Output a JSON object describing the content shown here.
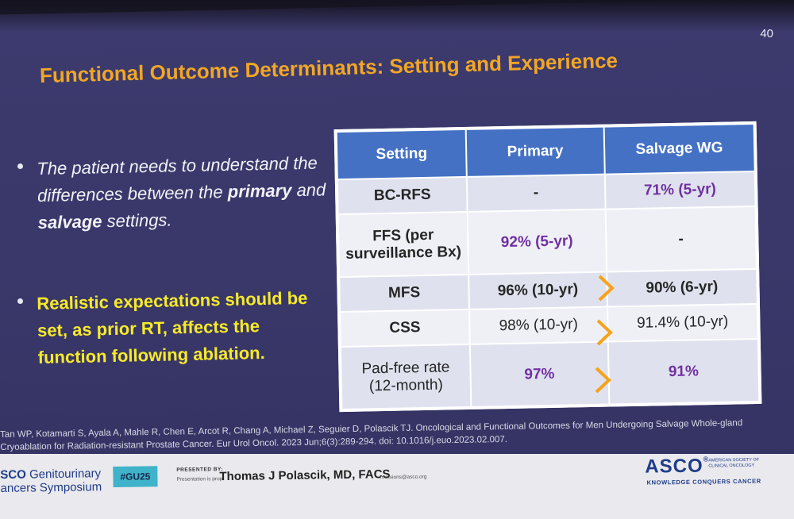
{
  "slide": {
    "number": "40",
    "title": "Functional Outcome Determinants: Setting and Experience"
  },
  "bullets": {
    "b1_pre": "The patient needs to understand the differences between the ",
    "b1_bold1": "primary",
    "b1_mid": " and ",
    "b1_bold2": "salvage",
    "b1_post": " settings.",
    "b2": "Realistic expectations should be set, as prior RT, affects the function following ablation."
  },
  "table": {
    "headers": [
      "Setting",
      "Primary",
      "Salvage WG"
    ],
    "rows": [
      {
        "setting": "BC-RFS",
        "primary": "-",
        "salvage": "71% (5-yr)"
      },
      {
        "setting": "FFS (per surveillance Bx)",
        "primary": "92% (5-yr)",
        "salvage": "-"
      },
      {
        "setting": "MFS",
        "primary": "96% (10-yr)",
        "salvage": "90% (6-yr)"
      },
      {
        "setting": "CSS",
        "primary": "98% (10-yr)",
        "salvage": "91.4% (10-yr)"
      },
      {
        "setting": "Pad-free rate (12-month)",
        "primary": "97%",
        "salvage": "91%"
      }
    ],
    "arrow_color": "#f5a21c"
  },
  "reference": {
    "line1": "Tan WP, Kotamarti S, Ayala A, Mahle R, Chen E, Arcot R, Chang A, Michael Z, Seguier D, Polascik TJ. Oncological and Functional Outcomes for Men Undergoing Salvage Whole-gland",
    "line2": "Cryoablation for Radiation-resistant Prostate Cancer. Eur Urol Oncol. 2023 Jun;6(3):289-294. doi: 10.1016/j.euo.2023.02.007."
  },
  "footer": {
    "symposium_line1_bold": "SCO",
    "symposium_line1_rest": " Genitourinary",
    "symposium_line2": "ancers Symposium",
    "hashtag": "#GU25",
    "presented_label": "PRESENTED BY:",
    "presented_note": "Presentation is prop",
    "presenter": "Thomas J Polascik, MD, FACS",
    "presenter_email": "rmissions@asco.org",
    "asco": "ASCO",
    "asco_society": "AMERICAN SOCIETY OF CLINICAL ONCOLOGY",
    "asco_tagline": "KNOWLEDGE CONQUERS CANCER"
  }
}
